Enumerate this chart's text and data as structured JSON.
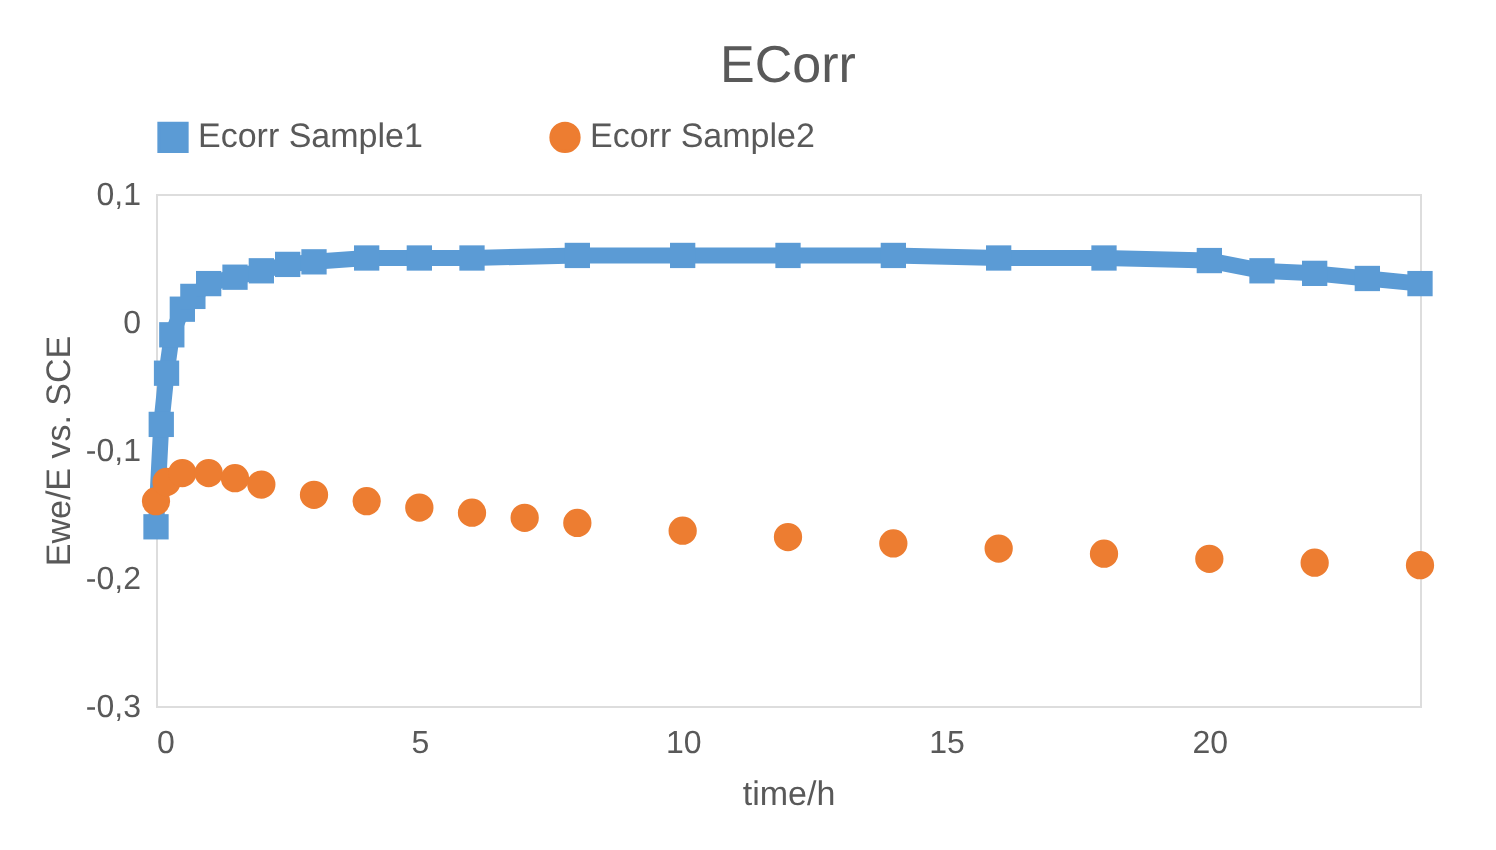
{
  "chart_data": {
    "type": "line",
    "title": "ECorr",
    "xlabel": "time/h",
    "ylabel": "Ewe/E vs. SCE",
    "xlim": [
      0,
      24
    ],
    "xticks": [
      0,
      5,
      10,
      15,
      20
    ],
    "ylim": [
      -0.3,
      0.1
    ],
    "yticks": [
      {
        "value": -0.3,
        "label": "-0,3"
      },
      {
        "value": -0.2,
        "label": "-0,2"
      },
      {
        "value": -0.1,
        "label": "-0,1"
      },
      0,
      {
        "value": 0.1,
        "label": "0,1"
      }
    ],
    "grid": false,
    "legend": "top",
    "series": [
      {
        "name": "Ecorr Sample1",
        "color": "#5b9bd5",
        "marker": "square",
        "x": [
          0,
          0.1,
          0.2,
          0.3,
          0.5,
          0.7,
          1,
          1.5,
          2,
          2.5,
          3,
          4,
          5,
          6,
          8,
          10,
          12,
          14,
          16,
          18,
          20,
          21,
          22,
          23,
          24
        ],
        "values": [
          -0.16,
          -0.08,
          -0.04,
          -0.01,
          0.01,
          0.02,
          0.03,
          0.035,
          0.04,
          0.045,
          0.047,
          0.05,
          0.05,
          0.05,
          0.052,
          0.052,
          0.052,
          0.052,
          0.05,
          0.05,
          0.048,
          0.04,
          0.038,
          0.034,
          0.03
        ]
      },
      {
        "name": "Ecorr Sample2",
        "color": "#ed7d31",
        "type": "scatter",
        "marker": "circle",
        "x": [
          0,
          0.2,
          0.5,
          1,
          1.5,
          2,
          3,
          4,
          5,
          6,
          7,
          8,
          10,
          12,
          14,
          16,
          18,
          20,
          22,
          24
        ],
        "values": [
          -0.14,
          -0.125,
          -0.118,
          -0.118,
          -0.122,
          -0.127,
          -0.135,
          -0.14,
          -0.145,
          -0.149,
          -0.153,
          -0.157,
          -0.163,
          -0.168,
          -0.173,
          -0.177,
          -0.181,
          -0.185,
          -0.188,
          -0.19
        ]
      }
    ]
  }
}
